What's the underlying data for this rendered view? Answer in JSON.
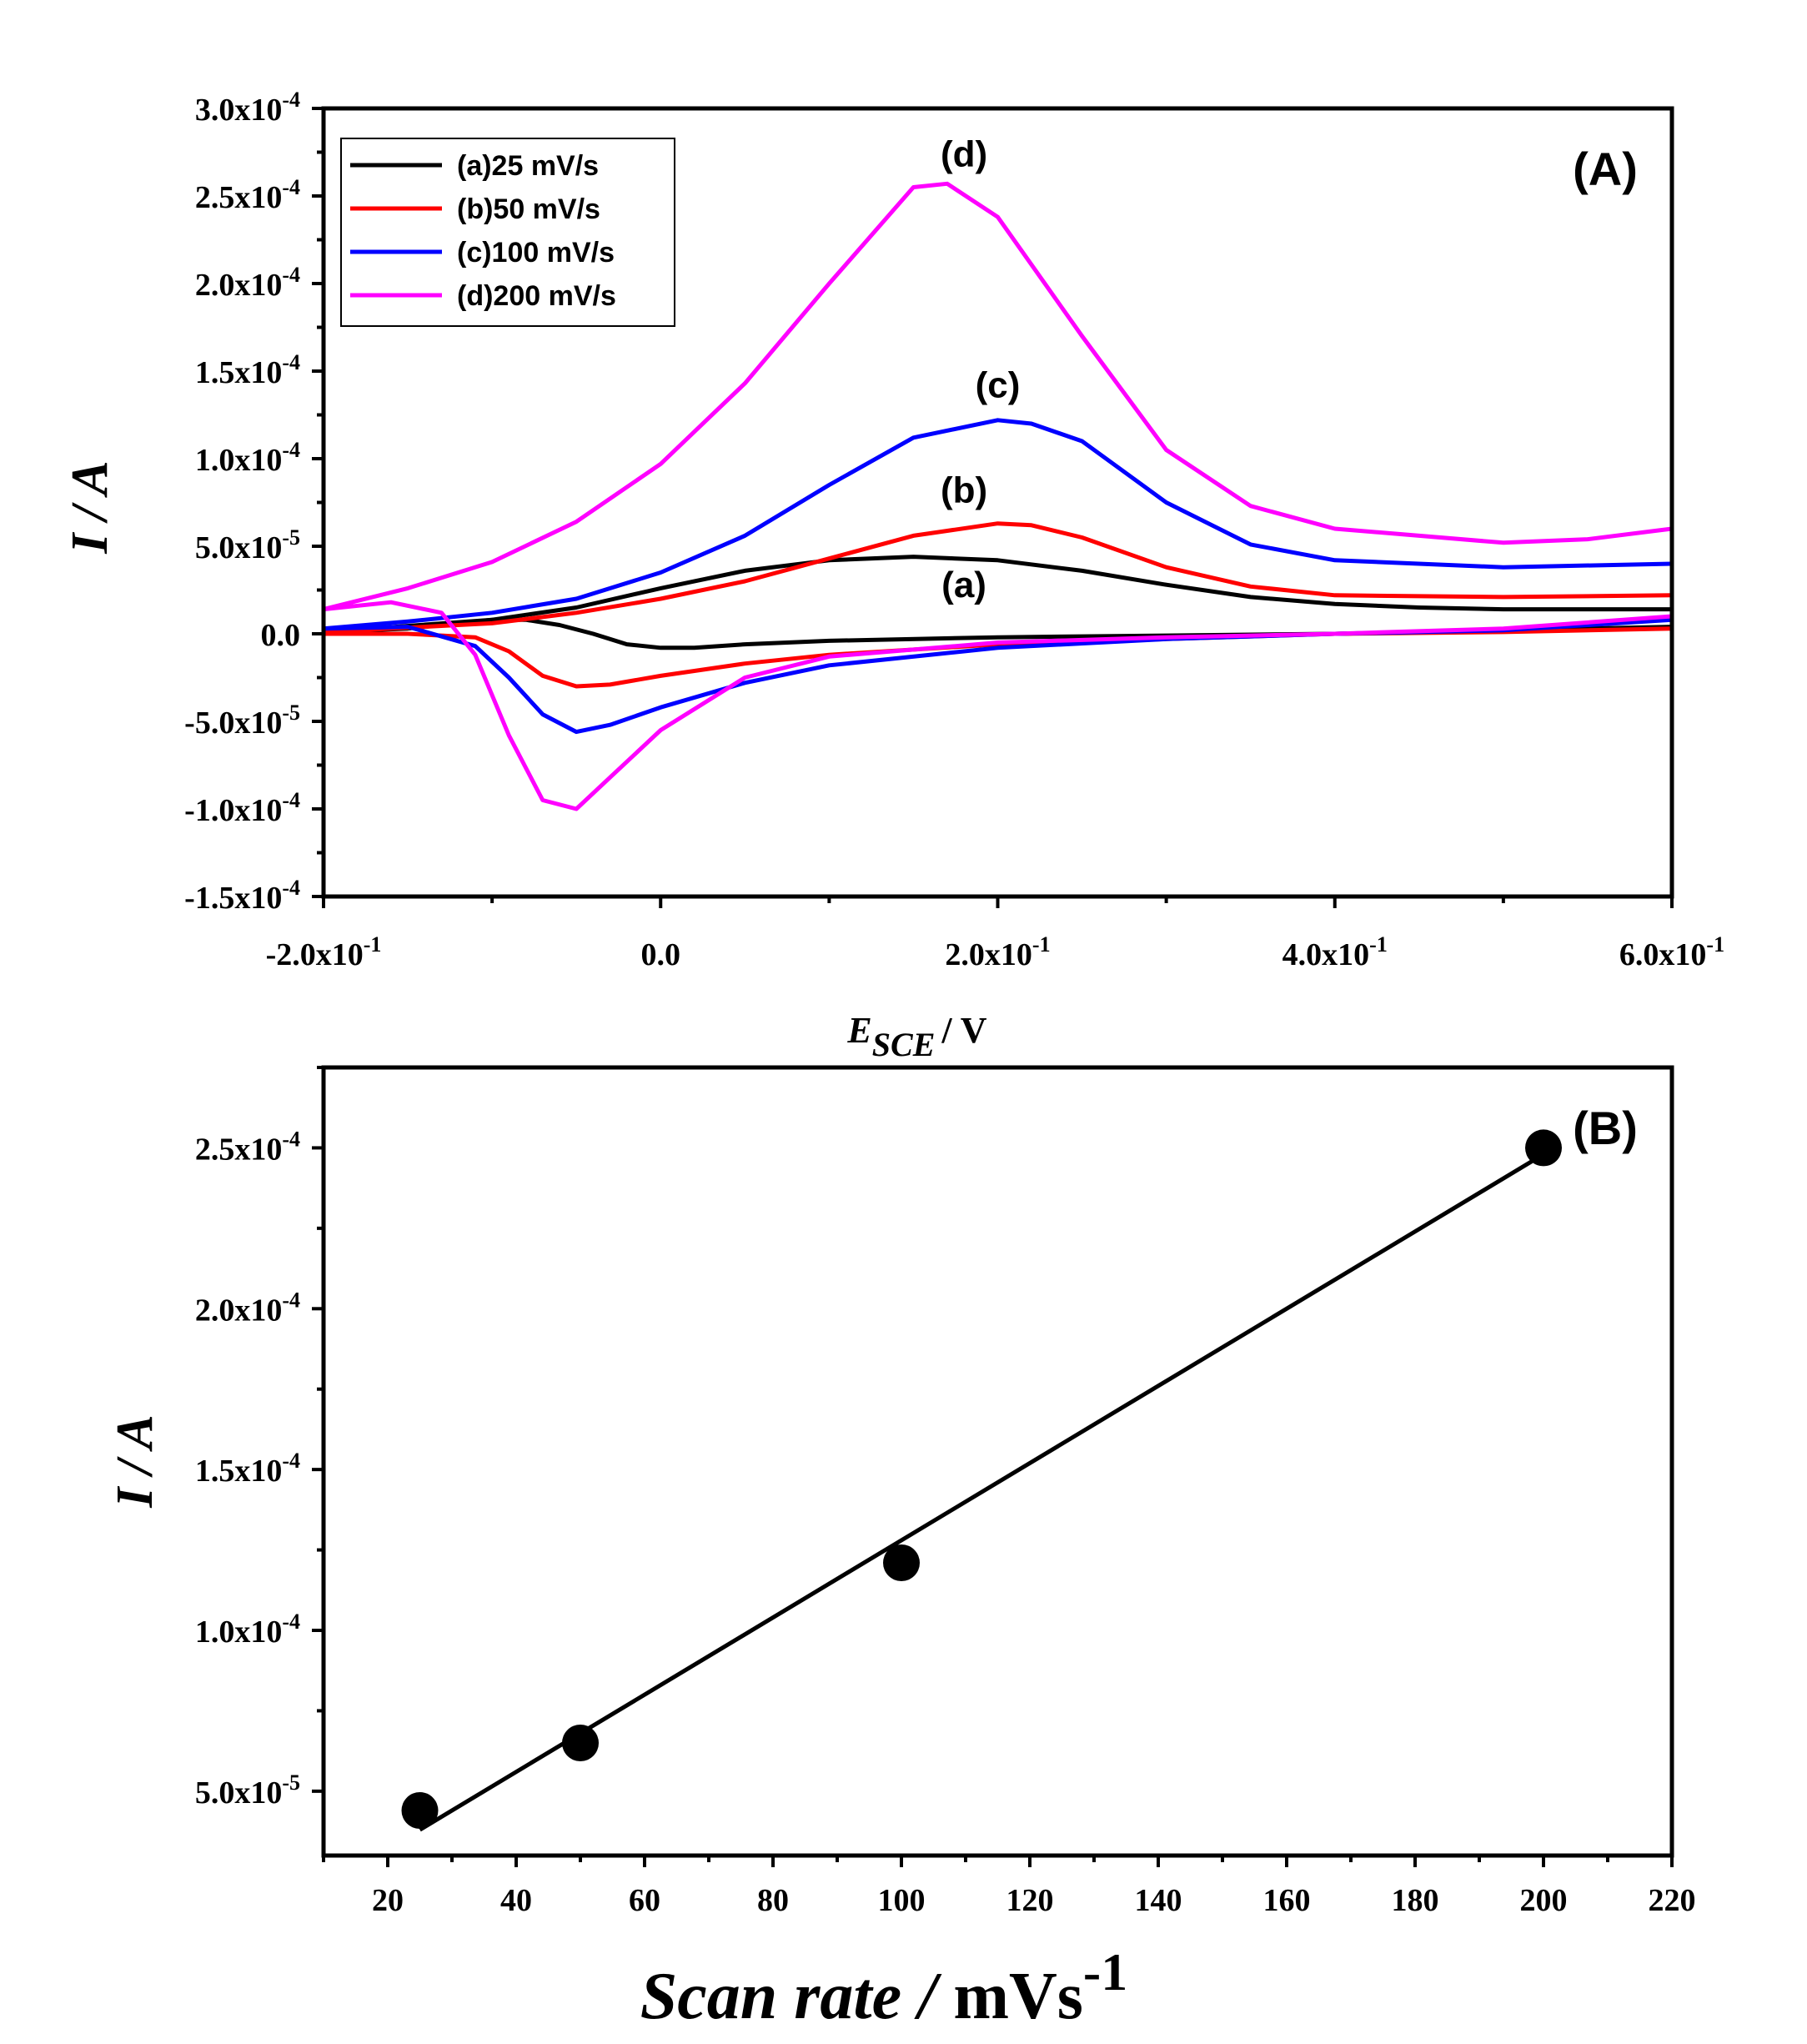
{
  "chart_data": [
    {
      "panel": "(A)",
      "type": "line",
      "xlabel": {
        "main": "E",
        "sub": "SCE",
        "unit": "/ V"
      },
      "ylabel": "I / A",
      "xlim": [
        -0.2,
        0.6
      ],
      "ylim": [
        -0.00015,
        0.0003
      ],
      "x_ticks": [
        {
          "mantissa": "-2.0x10",
          "exp": "-1",
          "value": -0.2
        },
        {
          "mantissa": "0.0",
          "exp": "",
          "value": 0.0
        },
        {
          "mantissa": "2.0x10",
          "exp": "-1",
          "value": 0.2
        },
        {
          "mantissa": "4.0x10",
          "exp": "-1",
          "value": 0.4
        },
        {
          "mantissa": "6.0x10",
          "exp": "-1",
          "value": 0.6
        }
      ],
      "y_ticks": [
        {
          "mantissa": "3.0x10",
          "exp": "-4",
          "value": 0.0003
        },
        {
          "mantissa": "2.5x10",
          "exp": "-4",
          "value": 0.00025
        },
        {
          "mantissa": "2.0x10",
          "exp": "-4",
          "value": 0.0002
        },
        {
          "mantissa": "1.5x10",
          "exp": "-4",
          "value": 0.00015
        },
        {
          "mantissa": "1.0x10",
          "exp": "-4",
          "value": 0.0001
        },
        {
          "mantissa": "5.0x10",
          "exp": "-5",
          "value": 5e-05
        },
        {
          "mantissa": "0.0",
          "exp": "",
          "value": 0.0
        },
        {
          "mantissa": "-5.0x10",
          "exp": "-5",
          "value": -5e-05
        },
        {
          "mantissa": "-1.0x10",
          "exp": "-4",
          "value": -0.0001
        },
        {
          "mantissa": "-1.5x10",
          "exp": "-4",
          "value": -0.00015
        }
      ],
      "legend": [
        {
          "label": "(a)25 mV/s",
          "color": "#000000"
        },
        {
          "label": "(b)50 mV/s",
          "color": "#ff0000"
        },
        {
          "label": "(c)100 mV/s",
          "color": "#0000ff"
        },
        {
          "label": "(d)200 mV/s",
          "color": "#ff00ff"
        }
      ],
      "curve_labels": [
        {
          "text": "(a)",
          "x": 0.18,
          "y": 2.1e-05
        },
        {
          "text": "(b)",
          "x": 0.18,
          "y": 7.5e-05
        },
        {
          "text": "(c)",
          "x": 0.2,
          "y": 0.000135
        },
        {
          "text": "(d)",
          "x": 0.18,
          "y": 0.000267
        }
      ],
      "series": [
        {
          "name": "(a)25 mV/s",
          "color": "#000000",
          "forward": [
            [
              -0.2,
              1e-06
            ],
            [
              -0.1,
              8e-06
            ],
            [
              -0.05,
              1.5e-05
            ],
            [
              0.0,
              2.6e-05
            ],
            [
              0.05,
              3.6e-05
            ],
            [
              0.1,
              4.2e-05
            ],
            [
              0.15,
              4.4e-05
            ],
            [
              0.2,
              4.2e-05
            ],
            [
              0.25,
              3.6e-05
            ],
            [
              0.3,
              2.8e-05
            ],
            [
              0.35,
              2.1e-05
            ],
            [
              0.4,
              1.7e-05
            ],
            [
              0.45,
              1.5e-05
            ],
            [
              0.5,
              1.4e-05
            ],
            [
              0.55,
              1.4e-05
            ],
            [
              0.6,
              1.4e-05
            ]
          ],
          "reverse": [
            [
              0.6,
              4e-06
            ],
            [
              0.5,
              2e-06
            ],
            [
              0.4,
              0.0
            ],
            [
              0.3,
              -1e-06
            ],
            [
              0.2,
              -2e-06
            ],
            [
              0.1,
              -4e-06
            ],
            [
              0.05,
              -6e-06
            ],
            [
              0.02,
              -8e-06
            ],
            [
              0.0,
              -8e-06
            ],
            [
              -0.02,
              -6e-06
            ],
            [
              -0.04,
              0.0
            ],
            [
              -0.06,
              5e-06
            ],
            [
              -0.08,
              8e-06
            ],
            [
              -0.1,
              8e-06
            ],
            [
              -0.15,
              3e-06
            ],
            [
              -0.2,
              1e-06
            ]
          ]
        },
        {
          "name": "(b)50 mV/s",
          "color": "#ff0000",
          "forward": [
            [
              -0.2,
              1e-06
            ],
            [
              -0.1,
              6e-06
            ],
            [
              -0.05,
              1.2e-05
            ],
            [
              0.0,
              2e-05
            ],
            [
              0.05,
              3e-05
            ],
            [
              0.1,
              4.3e-05
            ],
            [
              0.15,
              5.6e-05
            ],
            [
              0.2,
              6.3e-05
            ],
            [
              0.22,
              6.2e-05
            ],
            [
              0.25,
              5.5e-05
            ],
            [
              0.3,
              3.8e-05
            ],
            [
              0.35,
              2.7e-05
            ],
            [
              0.4,
              2.2e-05
            ],
            [
              0.5,
              2.1e-05
            ],
            [
              0.6,
              2.2e-05
            ]
          ],
          "reverse": [
            [
              0.6,
              3e-06
            ],
            [
              0.5,
              1e-06
            ],
            [
              0.4,
              0.0
            ],
            [
              0.3,
              -3e-06
            ],
            [
              0.2,
              -6e-06
            ],
            [
              0.1,
              -1.2e-05
            ],
            [
              0.05,
              -1.7e-05
            ],
            [
              0.0,
              -2.4e-05
            ],
            [
              -0.03,
              -2.9e-05
            ],
            [
              -0.05,
              -3e-05
            ],
            [
              -0.07,
              -2.4e-05
            ],
            [
              -0.09,
              -1e-05
            ],
            [
              -0.11,
              -2e-06
            ],
            [
              -0.15,
              0.0
            ],
            [
              -0.2,
              0.0
            ]
          ]
        },
        {
          "name": "(c)100 mV/s",
          "color": "#0000ff",
          "forward": [
            [
              -0.2,
              3e-06
            ],
            [
              -0.15,
              7e-06
            ],
            [
              -0.1,
              1.2e-05
            ],
            [
              -0.05,
              2e-05
            ],
            [
              0.0,
              3.5e-05
            ],
            [
              0.05,
              5.6e-05
            ],
            [
              0.1,
              8.5e-05
            ],
            [
              0.15,
              0.000112
            ],
            [
              0.2,
              0.000122
            ],
            [
              0.22,
              0.00012
            ],
            [
              0.25,
              0.00011
            ],
            [
              0.3,
              7.5e-05
            ],
            [
              0.35,
              5.1e-05
            ],
            [
              0.4,
              4.2e-05
            ],
            [
              0.5,
              3.8e-05
            ],
            [
              0.6,
              4e-05
            ]
          ],
          "reverse": [
            [
              0.6,
              8e-06
            ],
            [
              0.5,
              2e-06
            ],
            [
              0.4,
              0.0
            ],
            [
              0.3,
              -3e-06
            ],
            [
              0.2,
              -8e-06
            ],
            [
              0.1,
              -1.8e-05
            ],
            [
              0.05,
              -2.8e-05
            ],
            [
              0.0,
              -4.2e-05
            ],
            [
              -0.03,
              -5.2e-05
            ],
            [
              -0.05,
              -5.6e-05
            ],
            [
              -0.07,
              -4.6e-05
            ],
            [
              -0.09,
              -2.5e-05
            ],
            [
              -0.11,
              -7e-06
            ],
            [
              -0.15,
              4e-06
            ],
            [
              -0.2,
              3e-06
            ]
          ]
        },
        {
          "name": "(d)200 mV/s",
          "color": "#ff00ff",
          "forward": [
            [
              -0.2,
              1.4e-05
            ],
            [
              -0.15,
              2.6e-05
            ],
            [
              -0.1,
              4.1e-05
            ],
            [
              -0.05,
              6.4e-05
            ],
            [
              0.0,
              9.7e-05
            ],
            [
              0.05,
              0.000143
            ],
            [
              0.1,
              0.0002
            ],
            [
              0.15,
              0.000255
            ],
            [
              0.17,
              0.000257
            ],
            [
              0.2,
              0.000238
            ],
            [
              0.25,
              0.00017
            ],
            [
              0.3,
              0.000105
            ],
            [
              0.35,
              7.3e-05
            ],
            [
              0.4,
              6e-05
            ],
            [
              0.5,
              5.2e-05
            ],
            [
              0.55,
              5.4e-05
            ],
            [
              0.6,
              6e-05
            ]
          ],
          "reverse": [
            [
              0.6,
              1e-05
            ],
            [
              0.5,
              3e-06
            ],
            [
              0.4,
              0.0
            ],
            [
              0.3,
              -2e-06
            ],
            [
              0.2,
              -5e-06
            ],
            [
              0.1,
              -1.3e-05
            ],
            [
              0.05,
              -2.5e-05
            ],
            [
              0.0,
              -5.5e-05
            ],
            [
              -0.03,
              -8.2e-05
            ],
            [
              -0.05,
              -0.0001
            ],
            [
              -0.07,
              -9.5e-05
            ],
            [
              -0.09,
              -5.8e-05
            ],
            [
              -0.11,
              -1.2e-05
            ],
            [
              -0.13,
              1.2e-05
            ],
            [
              -0.16,
              1.8e-05
            ],
            [
              -0.2,
              1.4e-05
            ]
          ]
        }
      ]
    },
    {
      "panel": "(B)",
      "type": "scatter",
      "xlabel": {
        "main": "Scan rate /",
        "unit": "mVs",
        "exp": "-1"
      },
      "ylabel": "I / A",
      "xlim": [
        10,
        220
      ],
      "ylim": [
        3e-05,
        0.000275
      ],
      "x_ticks": [
        "20",
        "40",
        "60",
        "80",
        "100",
        "120",
        "140",
        "160",
        "180",
        "200",
        "220"
      ],
      "y_ticks": [
        {
          "mantissa": "2.5x10",
          "exp": "-4",
          "value": 0.00025
        },
        {
          "mantissa": "2.0x10",
          "exp": "-4",
          "value": 0.0002
        },
        {
          "mantissa": "1.5x10",
          "exp": "-4",
          "value": 0.00015
        },
        {
          "mantissa": "1.0x10",
          "exp": "-4",
          "value": 0.0001
        },
        {
          "mantissa": "5.0x10",
          "exp": "-5",
          "value": 5e-05
        }
      ],
      "points": [
        {
          "x": 25,
          "y": 4.4e-05
        },
        {
          "x": 50,
          "y": 6.5e-05
        },
        {
          "x": 100,
          "y": 0.000121
        },
        {
          "x": 200,
          "y": 0.00025
        }
      ],
      "fit_line": [
        [
          25,
          3.8e-05
        ],
        [
          200,
          0.000248
        ]
      ],
      "color": "#000000"
    }
  ]
}
